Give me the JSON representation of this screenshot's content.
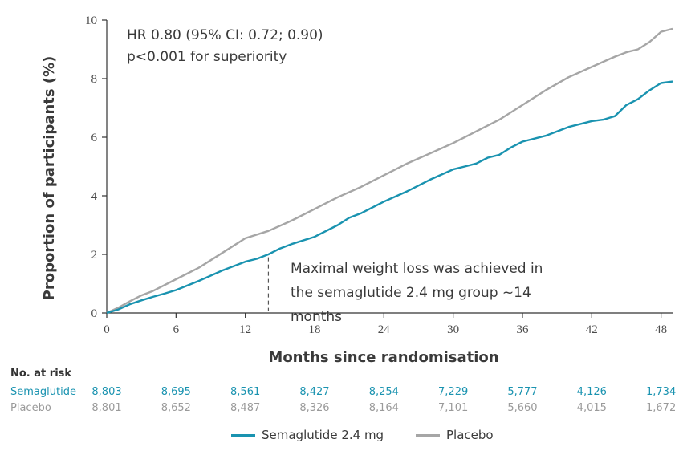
{
  "chart_data": {
    "type": "line",
    "annotation_stats": [
      "HR 0.80 (95% CI: 0.72; 0.90)",
      "p<0.001 for superiority"
    ],
    "annotation_note": [
      "Maximal weight loss was achieved in",
      "the semaglutide 2.4 mg group ~14",
      "months"
    ],
    "annotation_x": 14,
    "xlabel": "Months since randomisation",
    "ylabel": "Proportion of participants (%)",
    "xlim": [
      0,
      49
    ],
    "ylim": [
      0,
      10
    ],
    "x_ticks": [
      "0",
      "6",
      "12",
      "18",
      "24",
      "30",
      "36",
      "42",
      "48"
    ],
    "y_ticks": [
      "0",
      "2",
      "4",
      "6",
      "8",
      "10"
    ],
    "grid": false,
    "legend_position": "bottom",
    "colors": {
      "semaglutide": "#1a93b0",
      "placebo": "#a6a6a6"
    },
    "series": [
      {
        "name": "Semaglutide 2.4 mg",
        "color": "#1a93b0",
        "x": [
          0,
          1,
          2,
          3,
          4,
          5,
          6,
          8,
          10,
          12,
          13,
          14,
          15,
          16,
          18,
          20,
          21,
          22,
          24,
          26,
          28,
          30,
          31,
          32,
          33,
          34,
          35,
          36,
          38,
          40,
          42,
          43,
          44,
          45,
          46,
          47,
          48,
          49
        ],
        "y": [
          0,
          0.12,
          0.3,
          0.43,
          0.55,
          0.66,
          0.78,
          1.1,
          1.45,
          1.75,
          1.85,
          2.0,
          2.2,
          2.35,
          2.6,
          3.0,
          3.25,
          3.4,
          3.8,
          4.15,
          4.55,
          4.9,
          5.0,
          5.1,
          5.3,
          5.4,
          5.65,
          5.85,
          6.05,
          6.35,
          6.55,
          6.6,
          6.72,
          7.1,
          7.3,
          7.6,
          7.85,
          7.9
        ]
      },
      {
        "name": "Placebo",
        "color": "#a6a6a6",
        "x": [
          0,
          1,
          2,
          3,
          4,
          5,
          6,
          8,
          10,
          12,
          14,
          16,
          18,
          20,
          22,
          24,
          26,
          28,
          30,
          32,
          34,
          36,
          38,
          40,
          42,
          44,
          45,
          46,
          47,
          48,
          49
        ],
        "y": [
          0,
          0.18,
          0.4,
          0.6,
          0.75,
          0.95,
          1.15,
          1.55,
          2.05,
          2.55,
          2.8,
          3.15,
          3.55,
          3.95,
          4.3,
          4.7,
          5.1,
          5.45,
          5.8,
          6.2,
          6.6,
          7.1,
          7.6,
          8.05,
          8.4,
          8.75,
          8.9,
          9.0,
          9.25,
          9.6,
          9.7
        ]
      }
    ]
  },
  "risk_table": {
    "title": "No. at risk",
    "rows": [
      {
        "label": "Semaglutide",
        "color": "#1a93b0",
        "values": [
          "8,803",
          "8,695",
          "8,561",
          "8,427",
          "8,254",
          "7,229",
          "5,777",
          "4,126",
          "1,734"
        ]
      },
      {
        "label": "Placebo",
        "color": "#9a9a9a",
        "values": [
          "8,801",
          "8,652",
          "8,487",
          "8,326",
          "8,164",
          "7,101",
          "5,660",
          "4,015",
          "1,672"
        ]
      }
    ]
  },
  "legend": {
    "items": [
      {
        "label": "Semaglutide 2.4 mg",
        "color": "#1a93b0"
      },
      {
        "label": "Placebo",
        "color": "#a6a6a6"
      }
    ]
  }
}
